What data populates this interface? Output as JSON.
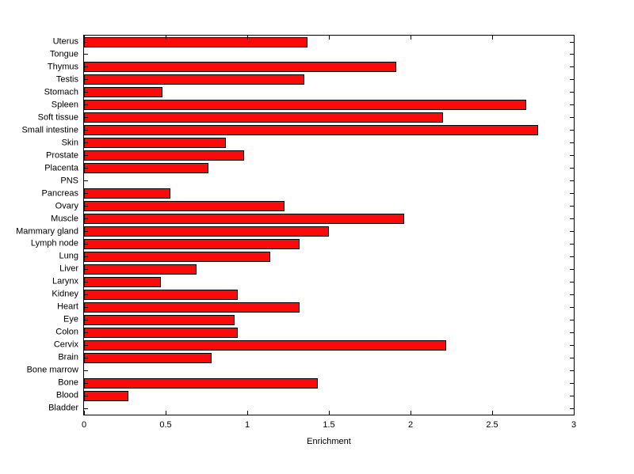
{
  "chart_data": {
    "type": "bar",
    "orientation": "horizontal",
    "title": "",
    "xlabel": "Enrichment",
    "ylabel": "",
    "xlim": [
      0,
      3
    ],
    "xtick_values": [
      0,
      0.5,
      1,
      1.5,
      2,
      2.5,
      3
    ],
    "xtick_labels": [
      "0",
      "0.5",
      "1",
      "1.5",
      "2",
      "2.5",
      "3"
    ],
    "grid": "off",
    "legend": "none",
    "bar_color": "#fb0a0a",
    "bar_edge_color": "#000000",
    "axis_color": "#000000",
    "background_color": "#ffffff",
    "categories": [
      "Uterus",
      "Tongue",
      "Thymus",
      "Testis",
      "Stomach",
      "Spleen",
      "Soft tissue",
      "Small intestine",
      "Skin",
      "Prostate",
      "Placenta",
      "PNS",
      "Pancreas",
      "Ovary",
      "Muscle",
      "Mammary gland",
      "Lymph node",
      "Lung",
      "Liver",
      "Larynx",
      "Kidney",
      "Heart",
      "Eye",
      "Colon",
      "Cervix",
      "Brain",
      "Bone marrow",
      "Bone",
      "Blood",
      "Bladder"
    ],
    "values": [
      1.37,
      0,
      1.91,
      1.35,
      0.48,
      2.71,
      2.2,
      2.78,
      0.87,
      0.98,
      0.76,
      0,
      0.53,
      1.23,
      1.96,
      1.5,
      1.32,
      1.14,
      0.69,
      0.47,
      0.94,
      1.32,
      0.92,
      0.94,
      2.22,
      0.78,
      0,
      1.43,
      0.27,
      0
    ]
  }
}
